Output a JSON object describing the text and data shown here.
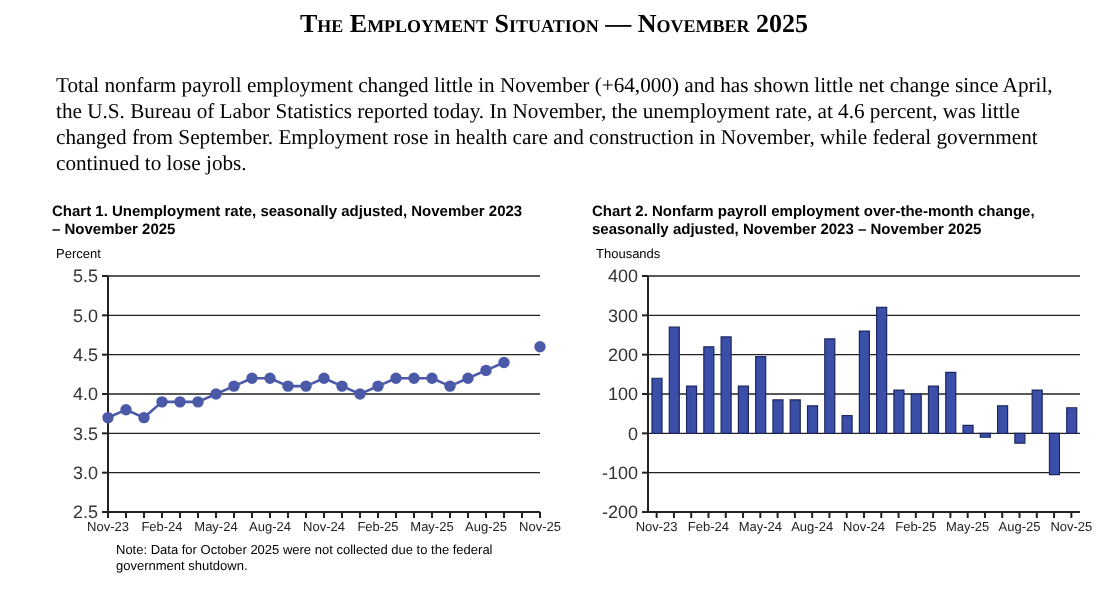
{
  "chart_data": [
    {
      "type": "line",
      "title": "Chart 1. Unemployment rate, seasonally adjusted, November 2023 – November 2025",
      "ylabel": "Percent",
      "annotations": [
        "The Employment Situation — November 2025",
        "Total nonfarm payroll employment changed little in November (+64,000) and has shown little net change since April, the U.S. Bureau of Labor Statistics reported today. In November, the unemployment rate, at 4.6 percent, was little changed from September. Employment rose in health care and construction in November, while federal government continued to lose jobs.",
        "Note: Data for October 2025 were not collected due to the federal government shutdown."
      ],
      "categories": [
        "Nov-23",
        null,
        null,
        "Feb-24",
        null,
        null,
        "May-24",
        null,
        null,
        "Aug-24",
        null,
        null,
        "Nov-24",
        null,
        null,
        "Feb-25",
        null,
        null,
        "May-25",
        null,
        null,
        "Aug-25",
        null,
        null,
        "Nov-25"
      ],
      "series": [
        {
          "color": "#4a5aa8",
          "values": [
            3.7,
            3.8,
            3.7,
            3.9,
            3.9,
            3.9,
            4.0,
            4.1,
            4.2,
            4.2,
            4.1,
            4.1,
            4.2,
            4.1,
            4.0,
            4.1,
            4.2,
            4.2,
            4.2,
            4.1,
            4.2,
            4.3,
            4.4,
            null,
            4.6
          ]
        }
      ],
      "ylim": [
        2.5,
        5.5
      ],
      "yticks": [
        {
          "value": 2.5,
          "label": "2.5"
        },
        {
          "value": 3,
          "label": "3.0"
        },
        {
          "value": 3.5,
          "label": "3.5"
        },
        {
          "value": 4,
          "label": "4.0"
        },
        {
          "value": 4.5,
          "label": "4.5"
        },
        {
          "value": 5,
          "label": "5.0"
        },
        {
          "value": 5.5,
          "label": "5.5"
        }
      ],
      "grid": "y",
      "legend": false,
      "marker": "circle",
      "line_style": "solid"
    },
    {
      "type": "bar",
      "title": "Chart 2. Nonfarm payroll employment over-the-month change, seasonally adjusted, November 2023 – November 2025",
      "ylabel": "Thousands",
      "categories": [
        "Nov-23",
        null,
        null,
        "Feb-24",
        null,
        null,
        "May-24",
        null,
        null,
        "Aug-24",
        null,
        null,
        "Nov-24",
        null,
        null,
        "Feb-25",
        null,
        null,
        "May-25",
        null,
        null,
        "Aug-25",
        null,
        null,
        "Nov-25"
      ],
      "series": [
        {
          "color": "#3b4fa8",
          "values": [
            140,
            270,
            120,
            220,
            245,
            120,
            195,
            85,
            85,
            70,
            240,
            45,
            260,
            320,
            110,
            100,
            120,
            155,
            20,
            -10,
            70,
            -25,
            110,
            -105,
            65
          ]
        }
      ],
      "ylim": [
        -200,
        400
      ],
      "yticks": [
        -200,
        -100,
        0,
        100,
        200,
        300,
        400
      ],
      "grid": "y",
      "legend": false
    }
  ]
}
